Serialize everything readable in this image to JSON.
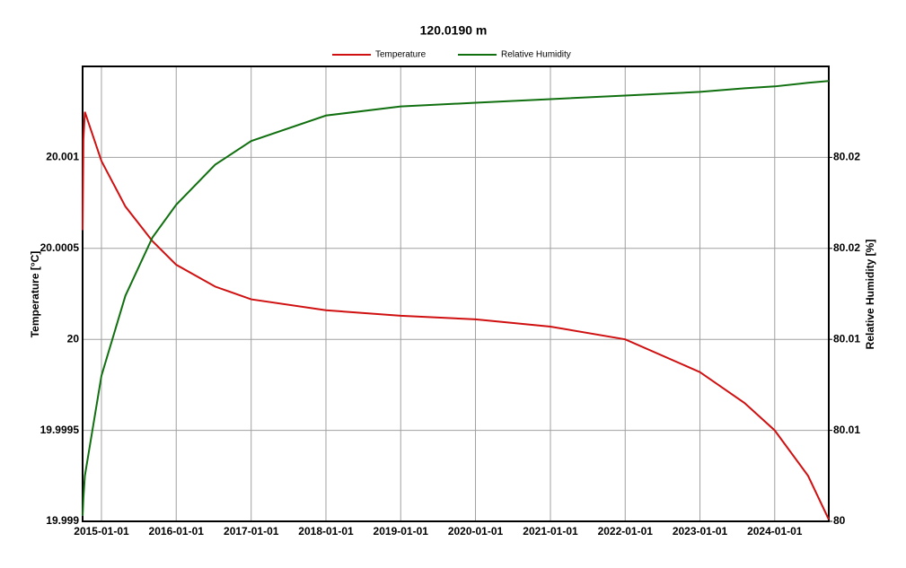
{
  "chart_data": {
    "type": "line",
    "title": "120.0190 m",
    "ylabel": "Temperature [°C]",
    "y2label": "Relative Humidity [%]",
    "x": [
      "2014-10-01",
      "2014-10-05",
      "2014-10-12",
      "2015-01-01",
      "2015-04-28",
      "2015-09-07",
      "2016-01-01",
      "2016-07-09",
      "2017-01-01",
      "2018-01-01",
      "2019-01-01",
      "2020-01-01",
      "2021-01-01",
      "2022-01-01",
      "2023-01-01",
      "2023-08-07",
      "2024-01-01",
      "2024-06-12",
      "2024-09-21"
    ],
    "series": [
      {
        "name": "Temperature",
        "color": "#d01010",
        "axis": "y",
        "values": [
          20.0006,
          20.0011,
          20.00125,
          20.00098,
          20.00073,
          20.00054,
          20.00041,
          20.00029,
          20.00022,
          20.00016,
          20.00013,
          20.00011,
          20.00007,
          20.0,
          19.99982,
          19.99965,
          19.9995,
          19.99925,
          19.99901
        ]
      },
      {
        "name": "Relative Humidity",
        "color": "#107010",
        "axis": "y2",
        "values": [
          80.0003,
          80.0013,
          80.0025,
          80.008,
          80.0124,
          80.0156,
          80.0174,
          80.0196,
          80.0209,
          80.0223,
          80.0228,
          80.023,
          80.0232,
          80.0234,
          80.0236,
          80.0238,
          80.0239,
          80.0241,
          80.0242
        ]
      }
    ],
    "xlim": [
      "2014-10-01",
      "2024-09-21"
    ],
    "xticks": [
      "2015-01-01",
      "2016-01-01",
      "2017-01-01",
      "2018-01-01",
      "2019-01-01",
      "2020-01-01",
      "2021-01-01",
      "2022-01-01",
      "2023-01-01",
      "2024-01-01"
    ],
    "ylim": [
      19.999,
      20.0015
    ],
    "yticks": [
      19.999,
      19.9995,
      20,
      20.0005,
      20.001
    ],
    "y2lim": [
      80,
      80.025
    ],
    "y2ticks": [
      80,
      {
        "value": 80.005,
        "label": "80.01"
      },
      80.01,
      {
        "value": 80.015,
        "label": "80.02"
      },
      80.02
    ],
    "grid": true,
    "legend": "top"
  }
}
